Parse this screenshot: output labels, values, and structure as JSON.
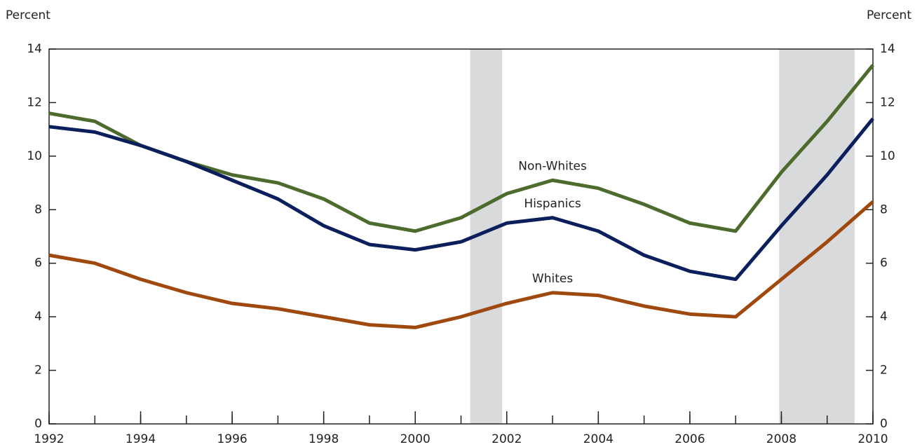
{
  "chart_data": {
    "type": "line",
    "ylabel": "Percent",
    "y2label": "Percent",
    "x": [
      1992,
      1993,
      1994,
      1995,
      1996,
      1997,
      1998,
      1999,
      2000,
      2001,
      2002,
      2003,
      2004,
      2005,
      2006,
      2007,
      2008,
      2009,
      2010
    ],
    "xlim": [
      1992,
      2010
    ],
    "xticks": [
      1992,
      1994,
      1996,
      1998,
      2000,
      2002,
      2004,
      2006,
      2008,
      2010
    ],
    "ylim": [
      0,
      14
    ],
    "yticks": [
      0,
      2,
      4,
      6,
      8,
      10,
      12,
      14
    ],
    "y2lim": [
      0,
      14
    ],
    "y2ticks": [
      0,
      2,
      4,
      6,
      8,
      10,
      12,
      14
    ],
    "shaded_periods": [
      [
        2001.2,
        2001.9
      ],
      [
        2007.95,
        2009.6
      ]
    ],
    "series": [
      {
        "name": "Non-Whites",
        "color": "#4e6b2e",
        "values": [
          11.6,
          11.3,
          10.4,
          9.8,
          9.3,
          9.0,
          8.4,
          7.5,
          7.2,
          7.7,
          8.6,
          9.1,
          8.8,
          8.2,
          7.5,
          7.2,
          9.4,
          11.3,
          13.4
        ]
      },
      {
        "name": "Hispanics",
        "color": "#0b1f5c",
        "values": [
          11.1,
          10.9,
          10.4,
          9.8,
          9.1,
          8.4,
          7.4,
          6.7,
          6.5,
          6.8,
          7.5,
          7.7,
          7.2,
          6.3,
          5.7,
          5.4,
          7.4,
          9.3,
          11.4
        ]
      },
      {
        "name": "Whites",
        "color": "#a0490f",
        "values": [
          6.3,
          6.0,
          5.4,
          4.9,
          4.5,
          4.3,
          4.0,
          3.7,
          3.6,
          4.0,
          4.5,
          4.9,
          4.8,
          4.4,
          4.1,
          4.0,
          5.4,
          6.8,
          8.3
        ]
      }
    ]
  }
}
